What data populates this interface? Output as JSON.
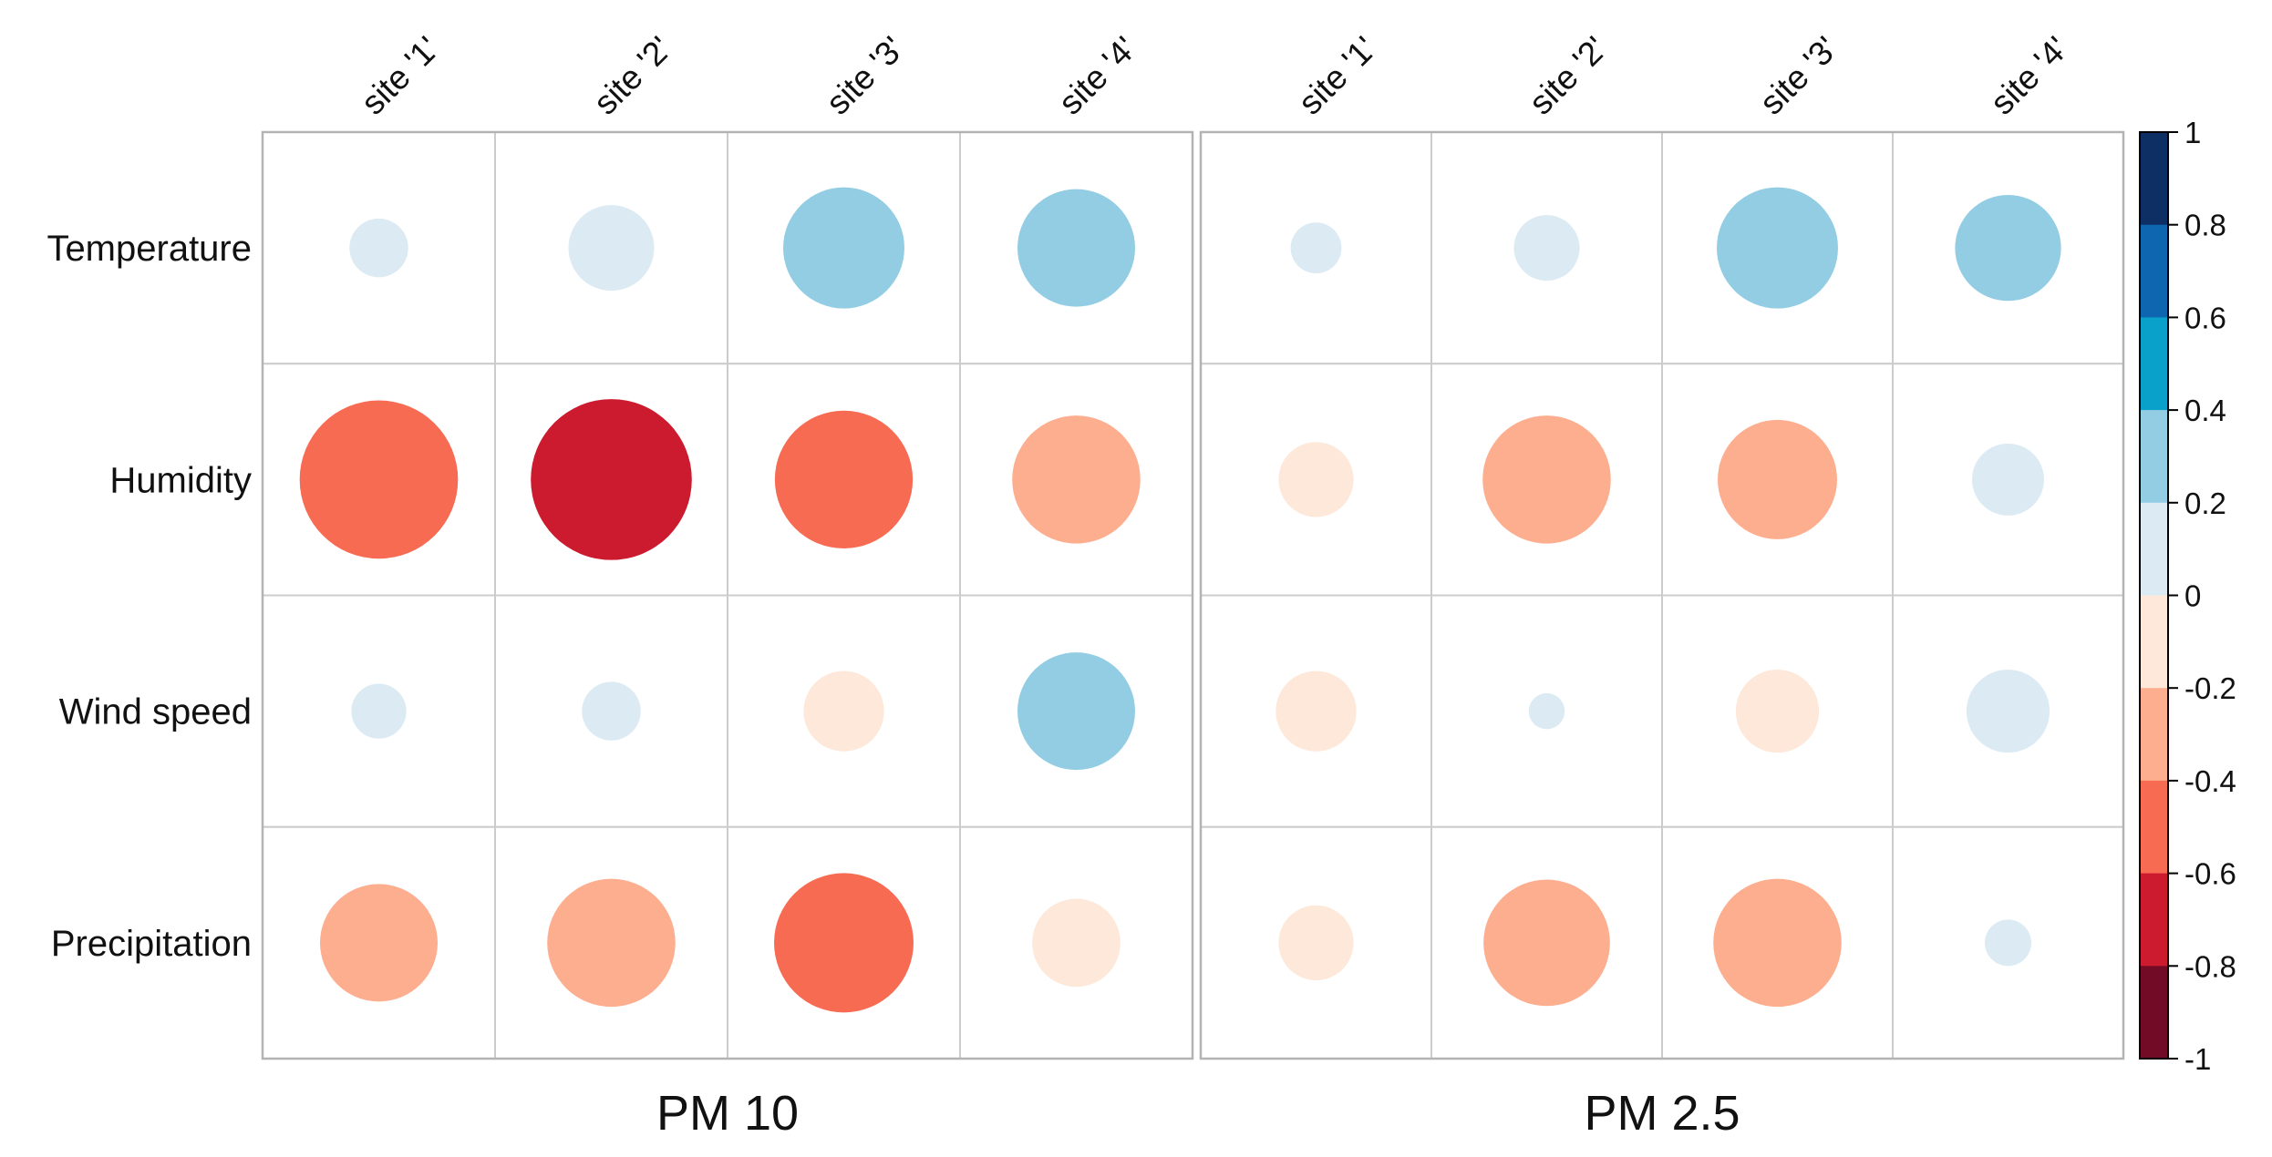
{
  "figure": {
    "background": "#ffffff"
  },
  "chart_data": {
    "type": "correlation-bubble-matrix",
    "rows": [
      "Temperature",
      "Humidity",
      "Wind speed",
      "Precipitation"
    ],
    "panels": [
      {
        "label": "PM 10",
        "columns": [
          "site '1'",
          "site '2'",
          "site '3'",
          "site '4'"
        ],
        "series": [
          {
            "name": "Temperature",
            "values": [
              0.08,
              0.17,
              0.34,
              0.32
            ]
          },
          {
            "name": "Humidity",
            "values": [
              -0.58,
              -0.6,
              -0.44,
              -0.38
            ]
          },
          {
            "name": "Wind speed",
            "values": [
              0.07,
              0.08,
              -0.15,
              0.32
            ]
          },
          {
            "name": "Precipitation",
            "values": [
              -0.32,
              -0.38,
              -0.45,
              -0.18
            ]
          }
        ]
      },
      {
        "label": "PM 2.5",
        "columns": [
          "site '1'",
          "site '2'",
          "site '3'",
          "site '4'"
        ],
        "series": [
          {
            "name": "Temperature",
            "values": [
              0.06,
              0.1,
              0.34,
              0.26
            ]
          },
          {
            "name": "Humidity",
            "values": [
              -0.13,
              -0.38,
              -0.33,
              0.12
            ]
          },
          {
            "name": "Wind speed",
            "values": [
              -0.15,
              0.03,
              -0.16,
              0.16
            ]
          },
          {
            "name": "Precipitation",
            "values": [
              -0.13,
              -0.37,
              -0.38,
              0.05
            ]
          }
        ]
      }
    ],
    "colorbar": {
      "position": "right",
      "min": -1,
      "max": 1,
      "tick_labels": [
        "1",
        "0.8",
        "0.6",
        "0.4",
        "0.2",
        "0",
        "-0.2",
        "-0.4",
        "-0.6",
        "-0.8",
        "-1"
      ],
      "band_colors_pos_to_neg": [
        "#0d2f63",
        "#0e66b0",
        "#09a1c9",
        "#92cde4",
        "#dcebf3",
        "#fde8da",
        "#fcae8f",
        "#f76b52",
        "#cc1a2f",
        "#720c26"
      ]
    },
    "grid": {
      "inner_line_color": "#cccccc",
      "outer_line_color": "#b3b3b3",
      "cell_fill": "#ffffff"
    },
    "text_color": "#111111"
  }
}
